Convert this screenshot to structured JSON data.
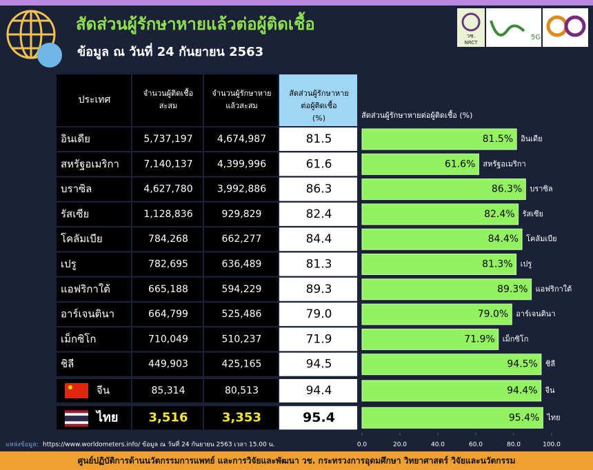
{
  "header": {
    "title": "สัดส่วนผู้รักษาหายแล้วต่อผู้ติดเชื้อ",
    "subtitle": "ข้อมูล ณ วันที่ 24 กันยายน 2563",
    "logos": [
      "วช.",
      "NRCT",
      "5G"
    ]
  },
  "table": {
    "columns": [
      "ประเทศ",
      "จำนวนผู้ติดเชื้อ สะสม",
      "จำนวนผู้รักษาหาย แล้วสะสม",
      "สัดส่วนผู้รักษาหาย ต่อผู้ติดเชื้อ (%)"
    ],
    "rows": [
      [
        "อินเดีย",
        "5,737,197",
        "4,674,987",
        "81.5"
      ],
      [
        "สหรัฐอเมริกา",
        "7,140,137",
        "4,399,996",
        "61.6"
      ],
      [
        "บราซิล",
        "4,627,780",
        "3,992,886",
        "86.3"
      ],
      [
        "รัสเซีย",
        "1,128,836",
        "929,829",
        "82.4"
      ],
      [
        "โคลัมเบีย",
        "784,268",
        "662,277",
        "84.4"
      ],
      [
        "เปรู",
        "782,695",
        "636,489",
        "81.3"
      ],
      [
        "แอฟริกาใต้",
        "665,188",
        "594,229",
        "89.3"
      ],
      [
        "อาร์เจนตินา",
        "664,799",
        "525,486",
        "79.0"
      ],
      [
        "เม็กซิโก",
        "710,049",
        "510,237",
        "71.9"
      ],
      [
        "ชิลี",
        "449,903",
        "425,165",
        "94.5"
      ],
      [
        "จีน",
        "85,314",
        "80,513",
        "94.4"
      ],
      [
        "ไทย",
        "3,516",
        "3,353",
        "95.4"
      ]
    ]
  },
  "chart_data": {
    "type": "bar",
    "orientation": "horizontal",
    "title": "สัดส่วนผู้รักษาหายต่อผู้ติดเชื้อ (%)",
    "categories": [
      "อินเดีย",
      "สหรัฐอเมริกา",
      "บราซิล",
      "รัสเซีย",
      "โคลัมเบีย",
      "เปรู",
      "แอฟริกาใต้",
      "อาร์เจนตินา",
      "เม็กซิโก",
      "ชิลี",
      "จีน",
      "ไทย"
    ],
    "values": [
      81.5,
      61.6,
      86.3,
      82.4,
      84.4,
      81.3,
      89.3,
      79.0,
      71.9,
      94.5,
      94.4,
      95.4
    ],
    "value_labels": [
      "81.5%",
      "61.6%",
      "86.3%",
      "82.4%",
      "84.4%",
      "81.3%",
      "89.3%",
      "79.0%",
      "71.9%",
      "94.5%",
      "94.4%",
      "95.4%"
    ],
    "color": "#92f25f",
    "xlim": [
      0,
      100
    ],
    "xticks": [
      {
        "value": 0,
        "label": "0.0"
      },
      {
        "value": 20,
        "label": "20.0"
      },
      {
        "value": 40,
        "label": "40.0"
      },
      {
        "value": 60,
        "label": "60.0"
      },
      {
        "value": 80,
        "label": "80.0"
      },
      {
        "value": 100,
        "label": "100.0"
      }
    ]
  },
  "footer": {
    "source_label": "แหล่งข้อมูล:",
    "source": "https://www.worldometers.info/ ข้อมูล ณ วันที่ 24 กันยายน 2563 เวลา 15.00 น.",
    "credit": "ศูนย์ปฏิบัติการด้านนวัตกรรมการแพทย์ และการวิจัยและพัฒนา  วช.  กระทรวงการอุดมศึกษา วิทยาศาสตร์ วิจัยและนวัตกรรม"
  }
}
